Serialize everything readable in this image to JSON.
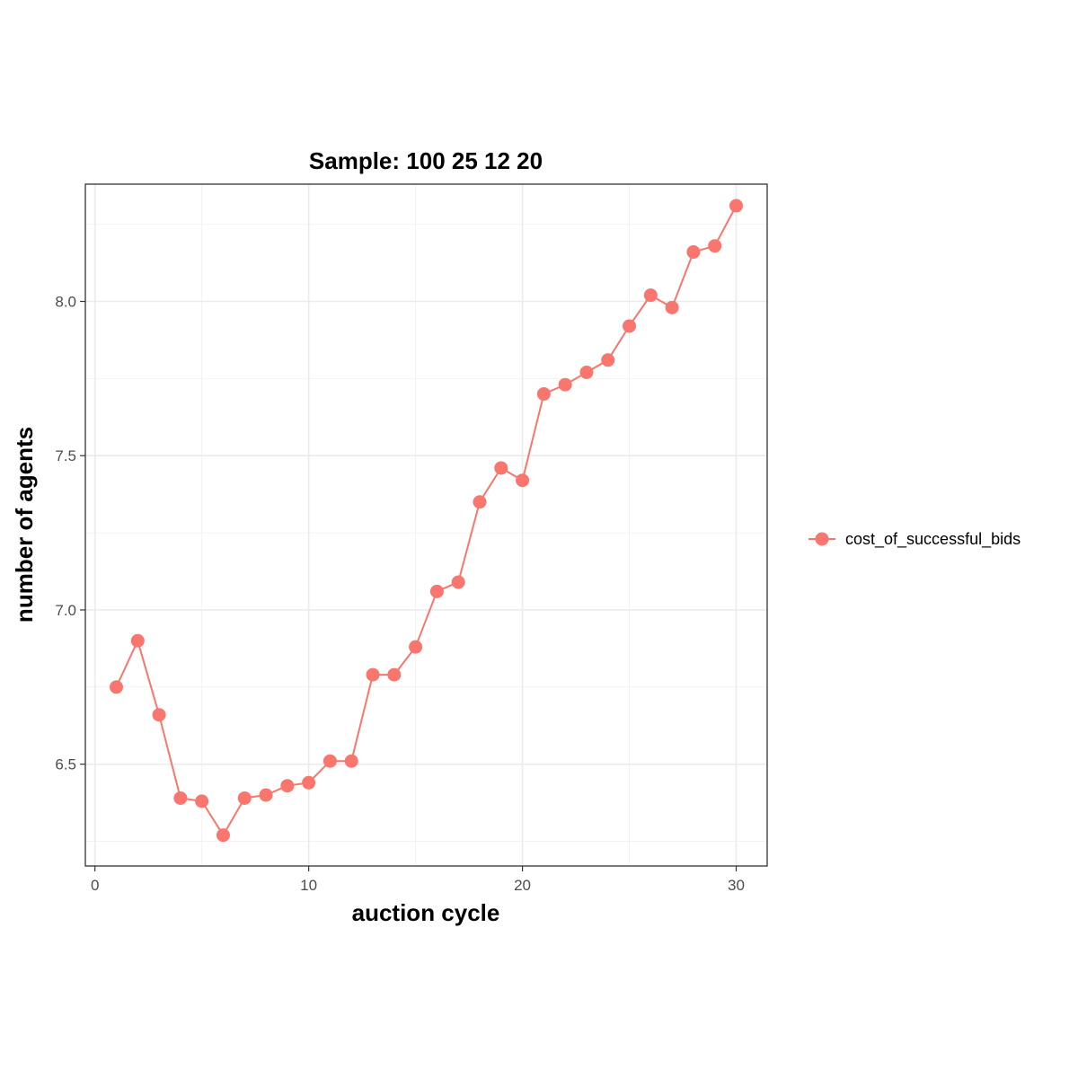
{
  "chart_data": {
    "type": "line",
    "title": "Sample: 100 25 12 20",
    "xlabel": "auction cycle",
    "ylabel": "number of agents",
    "xlim": [
      -0.45,
      31.45
    ],
    "ylim": [
      6.17,
      8.38
    ],
    "x_ticks": [
      0,
      10,
      20,
      30
    ],
    "x_tick_labels": [
      "0",
      "10",
      "20",
      "30"
    ],
    "y_ticks": [
      6.5,
      7.0,
      7.5,
      8.0
    ],
    "y_tick_labels": [
      "6.5",
      "7.0",
      "7.5",
      "8.0"
    ],
    "grid": true,
    "legend_position": "right",
    "series": [
      {
        "name": "cost_of_successful_bids",
        "color": "#F8766D",
        "x": [
          1,
          2,
          3,
          4,
          5,
          6,
          7,
          8,
          9,
          10,
          11,
          12,
          13,
          14,
          15,
          16,
          17,
          18,
          19,
          20,
          21,
          22,
          23,
          24,
          25,
          26,
          27,
          28,
          29,
          30
        ],
        "y": [
          6.75,
          6.9,
          6.66,
          6.39,
          6.38,
          6.27,
          6.39,
          6.4,
          6.43,
          6.44,
          6.51,
          6.51,
          6.79,
          6.79,
          6.88,
          7.06,
          7.09,
          7.35,
          7.46,
          7.42,
          7.7,
          7.73,
          7.77,
          7.81,
          7.92,
          8.02,
          7.98,
          8.16,
          8.18,
          8.31
        ]
      }
    ]
  }
}
